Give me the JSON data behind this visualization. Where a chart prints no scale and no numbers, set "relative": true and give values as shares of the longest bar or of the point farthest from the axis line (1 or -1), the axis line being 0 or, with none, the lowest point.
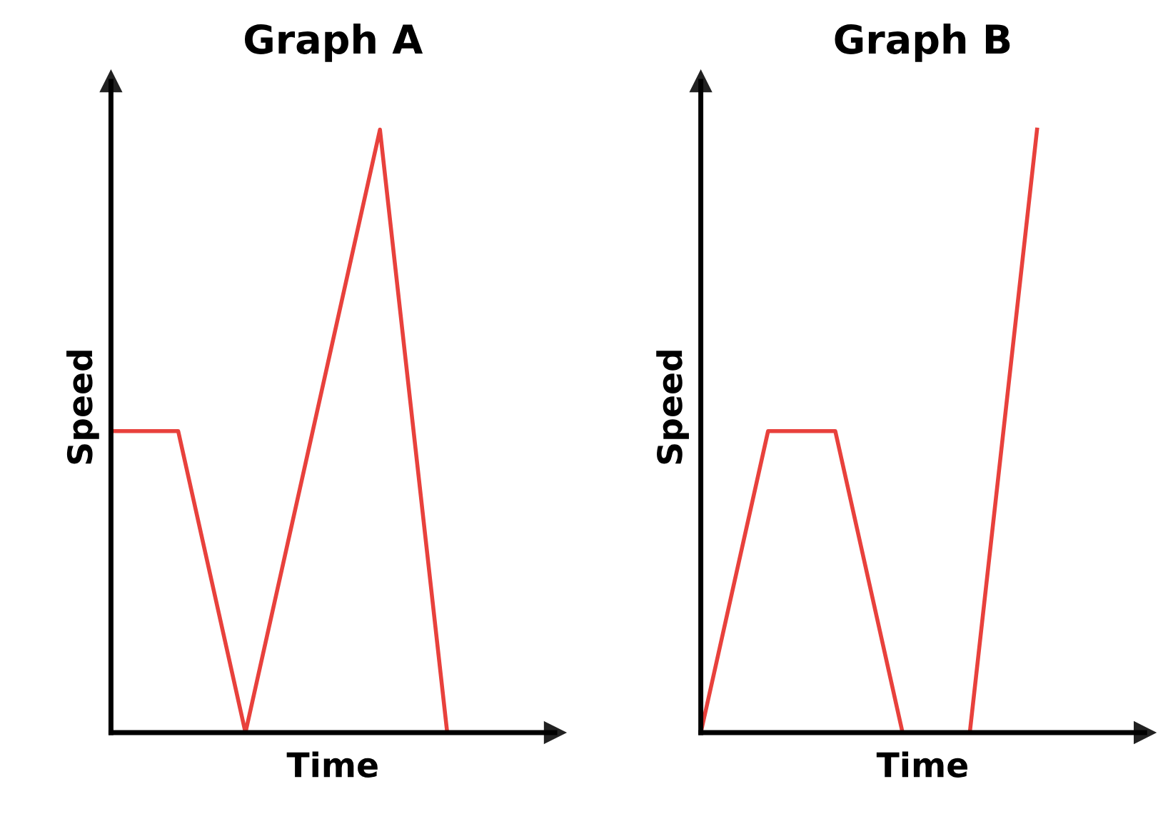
{
  "chart_data": [
    {
      "type": "line",
      "title": "Graph A",
      "xlabel": "Time",
      "ylabel": "Speed",
      "relative": true,
      "categories": [
        null,
        null,
        null,
        null,
        null,
        null
      ],
      "series": [
        {
          "color": "#e8413c",
          "values": [
            0.5,
            0.5,
            0,
            0.5,
            1,
            0
          ]
        }
      ]
    },
    {
      "type": "line",
      "title": "Graph B",
      "xlabel": "Time",
      "ylabel": "Speed",
      "relative": true,
      "categories": [
        null,
        null,
        null,
        null,
        null,
        null
      ],
      "series": [
        {
          "color": "#e8413c",
          "values": [
            0,
            0.5,
            0.5,
            0,
            0,
            1
          ]
        }
      ]
    }
  ]
}
